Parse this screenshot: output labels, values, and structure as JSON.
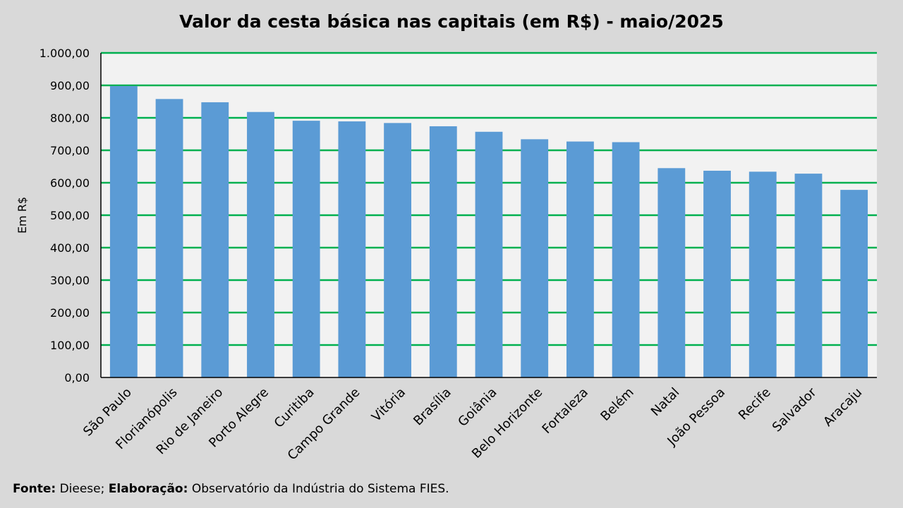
{
  "chart_data": {
    "type": "bar",
    "title": "Valor da cesta básica nas capitais (em R$) - maio/2025",
    "xlabel": "",
    "ylabel": "Em R$",
    "ylim": [
      0,
      1000
    ],
    "yticks": [
      "0,00",
      "100,00",
      "200,00",
      "300,00",
      "400,00",
      "500,00",
      "600,00",
      "700,00",
      "800,00",
      "900,00",
      "1.000,00"
    ],
    "grid": true,
    "bar_color": "#5b9bd5",
    "grid_color": "#00b050",
    "plot_background": "#f2f2f2",
    "categories": [
      "São Paulo",
      "Florianópolis",
      "Rio de Janeiro",
      "Porto Alegre",
      "Curitiba",
      "Campo Grande",
      "Vitória",
      "Brasília",
      "Goiânia",
      "Belo Horizonte",
      "Fortaleza",
      "Belém",
      "Natal",
      "João Pessoa",
      "Recife",
      "Salvador",
      "Aracaju"
    ],
    "values": [
      898,
      858,
      848,
      818,
      791,
      789,
      784,
      774,
      757,
      734,
      727,
      725,
      645,
      637,
      634,
      628,
      578
    ]
  },
  "footer": {
    "source_label": "Fonte:",
    "source_text": " Dieese; ",
    "elab_label": "Elaboração:",
    "elab_text": " Observatório da Indústria do Sistema FIES."
  }
}
